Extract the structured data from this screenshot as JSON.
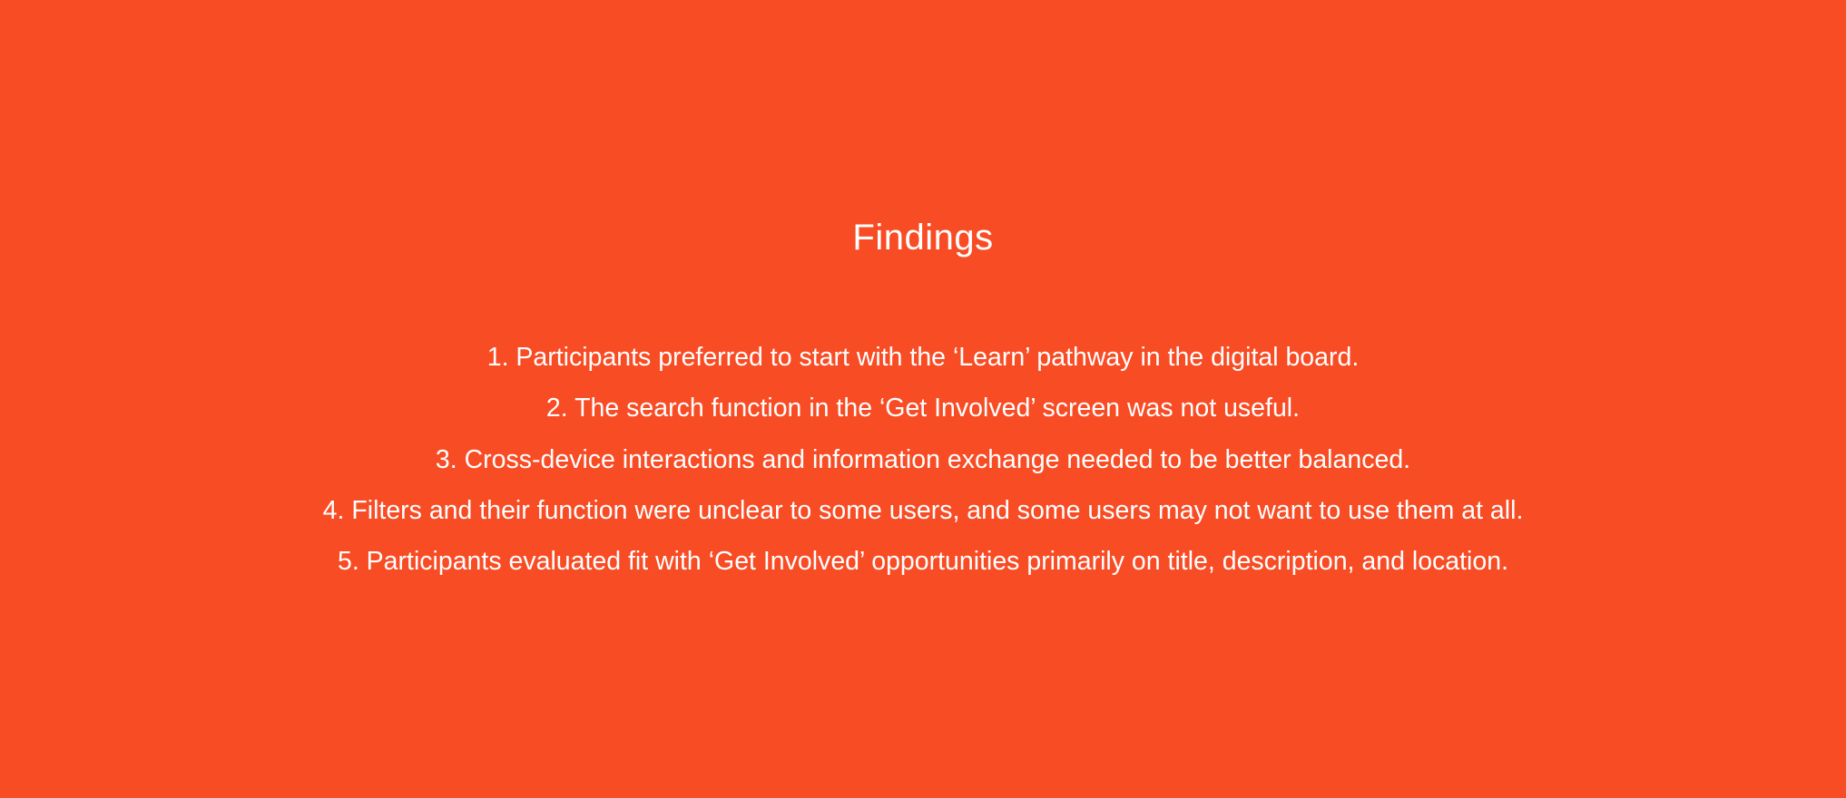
{
  "slide": {
    "background_color": "#f84c25",
    "text_color": "#ffffff",
    "title": "Findings",
    "findings": [
      "1. Participants preferred to start with the ‘Learn’ pathway in the digital board.",
      "2. The search function in the ‘Get Involved’ screen was not useful.",
      "3. Cross-device interactions and information exchange needed to be better balanced.",
      "4. Filters and their function were unclear to some users, and some users may not want to use them at all.",
      "5. Participants evaluated fit with ‘Get Involved’ opportunities primarily on title, description, and location."
    ]
  }
}
